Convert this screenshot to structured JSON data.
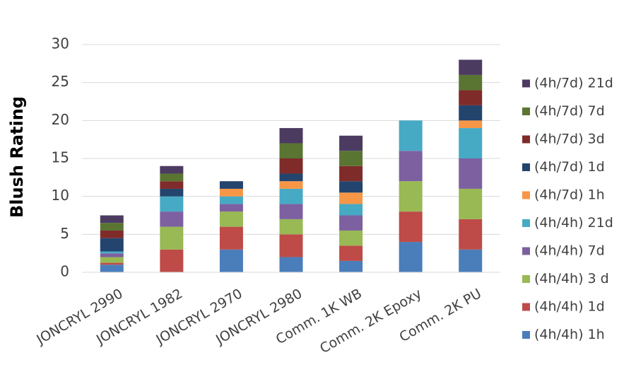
{
  "chart_data": {
    "type": "bar",
    "stacked": true,
    "title": "",
    "xlabel": "",
    "ylabel": "Blush Rating",
    "ylim": [
      0,
      30
    ],
    "yticks": [
      0,
      5,
      10,
      15,
      20,
      25,
      30
    ],
    "grid": true,
    "legend_position": "right",
    "categories": [
      "JONCRYL 2990",
      "JONCRYL 1982",
      "JONCRYL 2970",
      "JONCRYL 2980",
      "Comm. 1K WB",
      "Comm. 2K Epoxy",
      "Comm. 2K PU"
    ],
    "series": [
      {
        "name": "(4h/4h) 1h",
        "color": "#4a7ebb",
        "values": [
          1,
          0,
          3,
          2,
          1.5,
          4,
          3
        ]
      },
      {
        "name": "(4h/4h) 1d",
        "color": "#be4b48",
        "values": [
          0.25,
          3,
          3,
          3,
          2,
          4,
          4
        ]
      },
      {
        "name": "(4h/4h) 3 d",
        "color": "#98b954",
        "values": [
          0.75,
          3,
          2,
          2,
          2,
          4,
          4
        ]
      },
      {
        "name": "(4h/4h) 7d",
        "color": "#7d60a0",
        "values": [
          0.5,
          2,
          1,
          2,
          2,
          4,
          4
        ]
      },
      {
        "name": "(4h/4h) 21d",
        "color": "#46aac5",
        "values": [
          0.25,
          2,
          1,
          2,
          1.5,
          4,
          4
        ]
      },
      {
        "name": "(4h/7d) 1h",
        "color": "#f79646",
        "values": [
          0,
          0,
          1,
          1,
          1.5,
          0,
          1
        ]
      },
      {
        "name": "(4h/7d) 1d",
        "color": "#23446d",
        "values": [
          1.75,
          1,
          1,
          1,
          1.5,
          0,
          2
        ]
      },
      {
        "name": "(4h/7d) 3d",
        "color": "#7f2b2a",
        "values": [
          1,
          1,
          0,
          2,
          2,
          0,
          2
        ]
      },
      {
        "name": "(4h/7d) 7d",
        "color": "#5a7532",
        "values": [
          1,
          1,
          0,
          2,
          2,
          0,
          2
        ]
      },
      {
        "name": "(4h/7d) 21d",
        "color": "#4c3b61",
        "values": [
          1,
          1,
          0,
          2,
          2,
          0,
          2
        ]
      }
    ]
  }
}
